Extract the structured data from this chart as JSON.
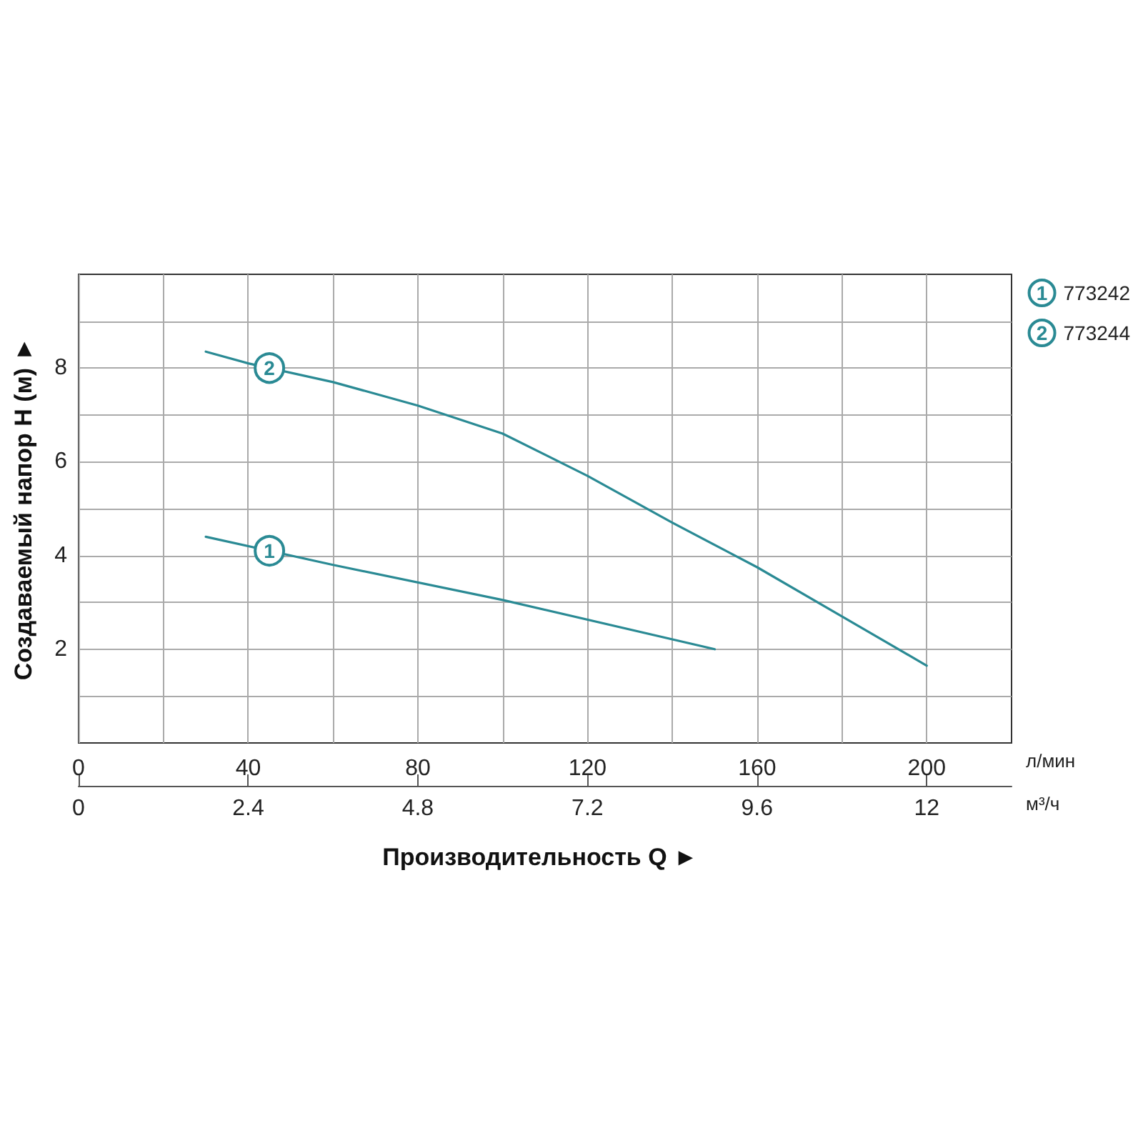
{
  "chart_data": {
    "type": "line",
    "xlabel": "л/мин",
    "x2label": "м³/ч",
    "ylabel": "Создаваемый напор H (м) ►",
    "series": [
      {
        "name": "773242",
        "color": "#2a8a94",
        "x": [
          30,
          60,
          100,
          150
        ],
        "values": [
          4.4,
          3.8,
          3.05,
          2.0
        ]
      },
      {
        "name": "773244",
        "color": "#2a8a94",
        "x": [
          30,
          40,
          60,
          80,
          100,
          120,
          140,
          160,
          180,
          200
        ],
        "values": [
          8.35,
          8.1,
          7.7,
          7.2,
          6.6,
          5.7,
          4.7,
          3.75,
          2.7,
          1.65
        ]
      }
    ],
    "xlim": [
      0,
      220
    ],
    "xticks": [
      0,
      {
        "value": 20,
        "label": null
      },
      40,
      {
        "value": 60,
        "label": null
      },
      80,
      {
        "value": 100,
        "label": null
      },
      120,
      {
        "value": 140,
        "label": null
      },
      160,
      {
        "value": 180,
        "label": null
      },
      200
    ],
    "x2lim": [
      0,
      13.2
    ],
    "x2ticks": [
      0,
      2.4,
      4.8,
      7.2,
      9.6,
      12
    ],
    "ylim": [
      0,
      10
    ],
    "yticks": [
      {
        "value": 1,
        "label": null
      },
      2,
      {
        "value": 3,
        "label": null
      },
      4,
      {
        "value": 5,
        "label": null
      },
      6,
      {
        "value": 7,
        "label": null
      },
      8,
      {
        "value": 9,
        "label": null
      }
    ],
    "annotations": [
      {
        "text": "1",
        "x": 45,
        "y": 4.1
      },
      {
        "text": "2",
        "x": 45,
        "y": 8.0
      },
      "Производительность Q ►"
    ],
    "grid": true,
    "legend": "top right",
    "marker": "none",
    "line_style": "solid"
  }
}
